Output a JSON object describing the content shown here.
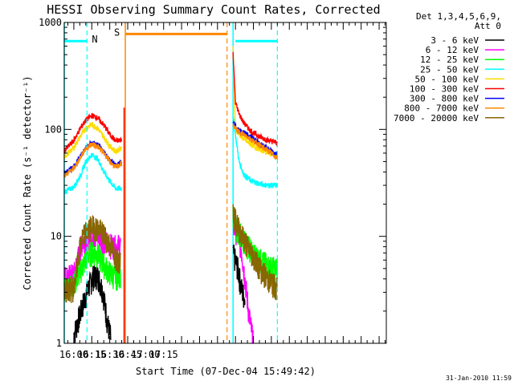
{
  "chart_data": {
    "type": "line",
    "title": "HESSI Observing Summary Count Rates, Corrected",
    "xlabel": "Start Time (07-Dec-04 15:49:42)",
    "ylabel": "Corrected Count Rate (s⁻¹ detector⁻¹)",
    "y_scale": "log",
    "ylim": [
      1,
      1000
    ],
    "y_ticks": [
      1,
      10,
      100,
      1000
    ],
    "y_tick_labels": [
      "1",
      "10",
      "100",
      "1000"
    ],
    "x_unit": "minutes of day (UT)",
    "xlim": [
      952,
      1221
    ],
    "x_ticks": [
      960,
      975,
      990,
      1005,
      1020,
      1035
    ],
    "x_tick_labels": [
      "16:00",
      "16:15",
      "16:30",
      "16:45",
      "17:00",
      "17:15"
    ],
    "legend_header": [
      "Det 1,3,4,5,6,9,",
      "Att 0"
    ],
    "legend_position": "right",
    "series": [
      {
        "name": "3 - 6 keV",
        "color": "#000000",
        "x": [
          960,
          968,
          972,
          976,
          980,
          984,
          988,
          991
        ],
        "y": [
          1.2,
          2.4,
          3.3,
          4.2,
          4.3,
          3.2,
          1.6,
          1.1
        ],
        "x2": [
          1093,
          1097,
          1100,
          1103
        ],
        "y2": [
          7.0,
          5.0,
          3.3,
          2.5
        ]
      },
      {
        "name": "6 - 12 keV",
        "color": "#ff00ff",
        "x": [
          952,
          960,
          967,
          970,
          975,
          980,
          985,
          990,
          995,
          999
        ],
        "y": [
          4.2,
          4.4,
          8.8,
          9.5,
          10.3,
          10.0,
          9.2,
          8.4,
          8.0,
          8.5
        ],
        "x2": [
          1093,
          1097,
          1100,
          1103,
          1106,
          1110
        ],
        "y2": [
          13.0,
          10.5,
          7.5,
          4.0,
          2.0,
          1.0
        ]
      },
      {
        "name": "12 - 25 keV",
        "color": "#00ff00",
        "x": [
          952,
          960,
          968,
          972,
          976,
          980,
          985,
          990,
          995,
          999
        ],
        "y": [
          3.3,
          3.6,
          5.5,
          6.8,
          7.2,
          6.8,
          5.5,
          4.6,
          4.2,
          4.5
        ],
        "x2": [
          1093,
          1095,
          1100,
          1106,
          1112,
          1118,
          1124,
          1130
        ],
        "y2": [
          16.5,
          12.5,
          10.0,
          8.0,
          6.6,
          5.8,
          5.2,
          5.0
        ]
      },
      {
        "name": "25 - 50 keV",
        "color": "#00ffff",
        "x": [
          952,
          960,
          966,
          970,
          975,
          980,
          985,
          990,
          995,
          1000
        ],
        "y": [
          26,
          29,
          38,
          50,
          58,
          53,
          40,
          33,
          28,
          28
        ],
        "x2": [
          1093,
          1095,
          1098,
          1102,
          1108,
          1115,
          1122,
          1130
        ],
        "y2": [
          140,
          90,
          50,
          38,
          33,
          31,
          30,
          30
        ]
      },
      {
        "name": "50 - 100 keV",
        "color": "#ffdd00",
        "x": [
          952,
          960,
          966,
          970,
          975,
          980,
          985,
          990,
          995,
          1000
        ],
        "y": [
          55,
          68,
          88,
          103,
          112,
          102,
          85,
          70,
          62,
          68
        ],
        "x2": [
          1093,
          1095,
          1100,
          1105,
          1112,
          1120,
          1130
        ],
        "y2": [
          580,
          100,
          85,
          76,
          68,
          62,
          57
        ]
      },
      {
        "name": "100 - 300 keV",
        "color": "#ff0000",
        "x": [
          952,
          960,
          966,
          970,
          975,
          980,
          985,
          990,
          995,
          1000
        ],
        "y": [
          63,
          79,
          105,
          122,
          135,
          128,
          110,
          90,
          78,
          80
        ],
        "x2": [
          1093,
          1095,
          1098,
          1102,
          1108,
          1115,
          1122,
          1130
        ],
        "y2": [
          520,
          180,
          140,
          115,
          96,
          86,
          79,
          75
        ]
      },
      {
        "name": "300 - 800 keV",
        "color": "#0000ff",
        "x": [
          952,
          960,
          966,
          970,
          975,
          980,
          985,
          990,
          995,
          1000
        ],
        "y": [
          39,
          45,
          57,
          67,
          75,
          71,
          62,
          52,
          46,
          50
        ],
        "x2": [
          1093,
          1097,
          1103,
          1110,
          1118,
          1125,
          1130
        ],
        "y2": [
          115,
          100,
          92,
          82,
          70,
          63,
          58
        ]
      },
      {
        "name": "800 - 7000 keV",
        "color": "#ff8800",
        "x": [
          952,
          960,
          966,
          970,
          975,
          980,
          985,
          990,
          995,
          1000
        ],
        "y": [
          37,
          43,
          56,
          66,
          73,
          69,
          61,
          50,
          44,
          48
        ],
        "x2": [
          1093,
          1097,
          1103,
          1110,
          1118,
          1125,
          1130
        ],
        "y2": [
          110,
          96,
          88,
          78,
          68,
          60,
          54
        ]
      },
      {
        "name": "7000 - 20000 keV",
        "color": "#886600",
        "x": [
          952,
          960,
          966,
          970,
          975,
          980,
          985,
          990,
          995,
          999
        ],
        "y": [
          3.2,
          3.3,
          9.0,
          11.0,
          12.5,
          12.0,
          10.5,
          8.5,
          6.5,
          6.0
        ],
        "x2": [
          1093,
          1095,
          1100,
          1106,
          1112,
          1118,
          1124,
          1130
        ],
        "y2": [
          18.0,
          14.0,
          10.5,
          7.8,
          6.0,
          4.6,
          3.8,
          3.3
        ]
      }
    ],
    "flags": [
      {
        "label": "N",
        "color": "#00ffff",
        "level": 670,
        "segments": [
          [
            952,
            971
          ],
          [
            1095,
            1130
          ]
        ],
        "markers": [
          971,
          1130
        ]
      },
      {
        "label": "S",
        "color": "#ff8800",
        "level": 780,
        "segments": [
          [
            1003,
            1088
          ]
        ],
        "markers": [
          1088
        ]
      }
    ],
    "vertical_lines": [
      {
        "x": 952,
        "color": "#00ffff"
      },
      {
        "x": 1003,
        "color": "#ff8800"
      },
      {
        "x": 1093,
        "color": "#00ffff"
      }
    ],
    "timestamp": "31-Jan-2010 11:59"
  }
}
